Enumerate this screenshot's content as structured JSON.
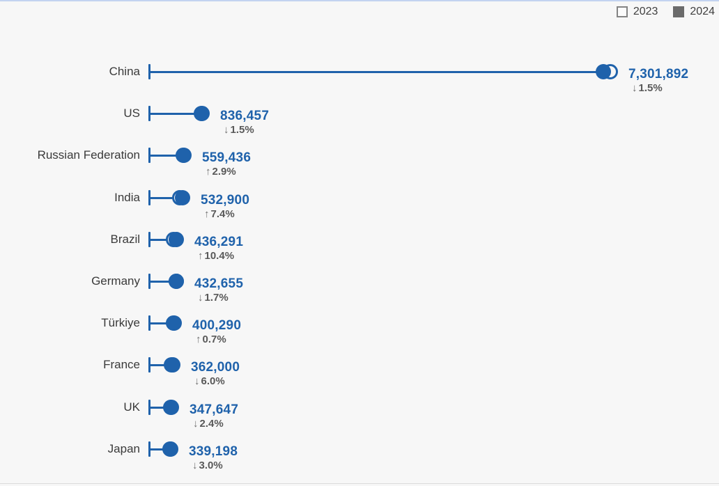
{
  "legend": {
    "items": [
      {
        "label": "2023",
        "swatch": "outline"
      },
      {
        "label": "2024",
        "swatch": "filled"
      }
    ]
  },
  "colors": {
    "accent": "#1f62ab",
    "country_label": "#3a3a3a",
    "change_text": "#595959",
    "arrow": "#6e6e6e",
    "legend_filled": "#6b6b6b",
    "legend_border": "#848484",
    "background": "#f7f7f7",
    "top_rule": "#c3d3f0",
    "bottom_rule": "#dcdcdc"
  },
  "chart_data": {
    "type": "lollipop",
    "title": "",
    "description": "Country values for 2024 (filled dot) vs 2023 (hollow dot) with year-over-year percent change",
    "legend_position": "top-right",
    "series_years": [
      "2023",
      "2024"
    ],
    "x_axis": {
      "min": 0,
      "max": 7500000,
      "ticks_visible": false,
      "grid": false
    },
    "rows": [
      {
        "country": "China",
        "value": 7301892,
        "value_label": "7,301,892",
        "direction": "down",
        "arrow": "↓",
        "change_pct": 1.5,
        "change_label": "1.5%"
      },
      {
        "country": "US",
        "value": 836457,
        "value_label": "836,457",
        "direction": "down",
        "arrow": "↓",
        "change_pct": 1.5,
        "change_label": "1.5%"
      },
      {
        "country": "Russian Federation",
        "value": 559436,
        "value_label": "559,436",
        "direction": "up",
        "arrow": "↑",
        "change_pct": 2.9,
        "change_label": "2.9%"
      },
      {
        "country": "India",
        "value": 532900,
        "value_label": "532,900",
        "direction": "up",
        "arrow": "↑",
        "change_pct": 7.4,
        "change_label": "7.4%"
      },
      {
        "country": "Brazil",
        "value": 436291,
        "value_label": "436,291",
        "direction": "up",
        "arrow": "↑",
        "change_pct": 10.4,
        "change_label": "10.4%"
      },
      {
        "country": "Germany",
        "value": 432655,
        "value_label": "432,655",
        "direction": "down",
        "arrow": "↓",
        "change_pct": 1.7,
        "change_label": "1.7%"
      },
      {
        "country": "Türkiye",
        "value": 400290,
        "value_label": "400,290",
        "direction": "up",
        "arrow": "↑",
        "change_pct": 0.7,
        "change_label": "0.7%"
      },
      {
        "country": "France",
        "value": 362000,
        "value_label": "362,000",
        "direction": "down",
        "arrow": "↓",
        "change_pct": 6.0,
        "change_label": "6.0%"
      },
      {
        "country": "UK",
        "value": 347647,
        "value_label": "347,647",
        "direction": "down",
        "arrow": "↓",
        "change_pct": 2.4,
        "change_label": "2.4%"
      },
      {
        "country": "Japan",
        "value": 339198,
        "value_label": "339,198",
        "direction": "down",
        "arrow": "↓",
        "change_pct": 3.0,
        "change_label": "3.0%"
      }
    ]
  }
}
